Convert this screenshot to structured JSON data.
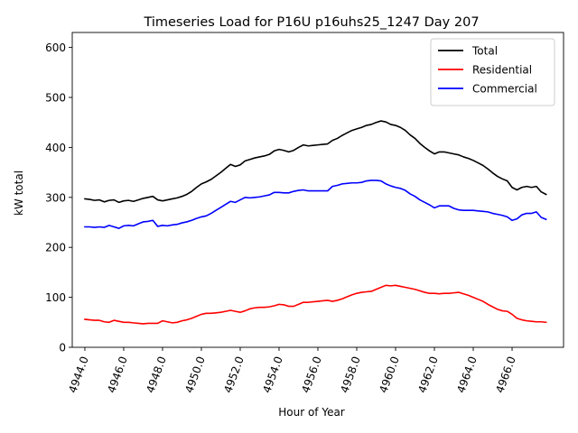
{
  "chart_data": {
    "type": "line",
    "title": "Timeseries Load for P16U p16uhs25_1247  Day 207",
    "xlabel": "Hour of Year",
    "ylabel": "kW total",
    "xlim": [
      4943.35,
      4968.65
    ],
    "ylim": [
      0,
      630
    ],
    "xticks": [
      4944,
      4946,
      4948,
      4950,
      4952,
      4954,
      4956,
      4958,
      4960,
      4962,
      4964,
      4966
    ],
    "xtick_labels": [
      "4944.0",
      "4946.0",
      "4948.0",
      "4950.0",
      "4952.0",
      "4954.0",
      "4956.0",
      "4958.0",
      "4960.0",
      "4962.0",
      "4964.0",
      "4966.0"
    ],
    "yticks": [
      0,
      100,
      200,
      300,
      400,
      500,
      600
    ],
    "ytick_labels": [
      "0",
      "100",
      "200",
      "300",
      "400",
      "500",
      "600"
    ],
    "legend_position": "top-right",
    "series": [
      {
        "name": "Total",
        "color": "#000000",
        "x_start": 4944.0,
        "x_step": 0.25,
        "values": [
          297,
          296,
          294,
          295,
          291,
          294,
          295,
          290,
          293,
          294,
          292,
          295,
          298,
          300,
          302,
          295,
          293,
          295,
          297,
          299,
          302,
          306,
          312,
          320,
          327,
          331,
          336,
          343,
          350,
          358,
          366,
          362,
          365,
          373,
          376,
          379,
          381,
          383,
          386,
          393,
          396,
          394,
          391,
          394,
          400,
          405,
          403,
          404,
          405,
          406,
          407,
          414,
          418,
          424,
          429,
          434,
          437,
          440,
          444,
          446,
          450,
          453,
          451,
          446,
          444,
          440,
          434,
          425,
          418,
          408,
          400,
          393,
          387,
          391,
          391,
          389,
          387,
          385,
          381,
          378,
          374,
          369,
          364,
          357,
          349,
          342,
          337,
          333,
          320,
          315,
          320,
          322,
          320,
          322,
          311,
          306
        ]
      },
      {
        "name": "Residential",
        "color": "#ff0000",
        "x_start": 4944.0,
        "x_step": 0.25,
        "values": [
          56,
          55,
          54,
          54,
          51,
          50,
          54,
          52,
          50,
          50,
          49,
          48,
          47,
          48,
          48,
          48,
          53,
          51,
          49,
          50,
          53,
          55,
          58,
          62,
          66,
          68,
          68,
          69,
          70,
          72,
          74,
          72,
          70,
          73,
          77,
          79,
          80,
          80,
          81,
          83,
          86,
          85,
          82,
          82,
          86,
          90,
          90,
          91,
          92,
          93,
          94,
          92,
          94,
          97,
          101,
          105,
          108,
          110,
          111,
          112,
          116,
          120,
          124,
          123,
          124,
          122,
          120,
          118,
          116,
          113,
          110,
          108,
          108,
          107,
          108,
          108,
          109,
          110,
          107,
          104,
          100,
          96,
          92,
          86,
          81,
          76,
          73,
          72,
          66,
          58,
          55,
          53,
          52,
          51,
          51,
          50
        ]
      },
      {
        "name": "Commercial",
        "color": "#0000ff",
        "x_start": 4944.0,
        "x_step": 0.25,
        "values": [
          241,
          241,
          240,
          241,
          240,
          244,
          241,
          238,
          243,
          244,
          243,
          247,
          251,
          252,
          254,
          242,
          244,
          243,
          245,
          246,
          249,
          251,
          254,
          258,
          261,
          263,
          268,
          274,
          280,
          286,
          292,
          290,
          295,
          300,
          299,
          300,
          301,
          303,
          305,
          310,
          310,
          309,
          309,
          312,
          314,
          315,
          313,
          313,
          313,
          313,
          313,
          322,
          324,
          327,
          328,
          329,
          329,
          330,
          333,
          334,
          334,
          333,
          327,
          323,
          320,
          318,
          314,
          307,
          302,
          295,
          290,
          285,
          279,
          283,
          283,
          283,
          278,
          275,
          274,
          274,
          274,
          273,
          272,
          271,
          268,
          266,
          264,
          261,
          254,
          257,
          265,
          268,
          268,
          271,
          260,
          256
        ]
      }
    ]
  }
}
